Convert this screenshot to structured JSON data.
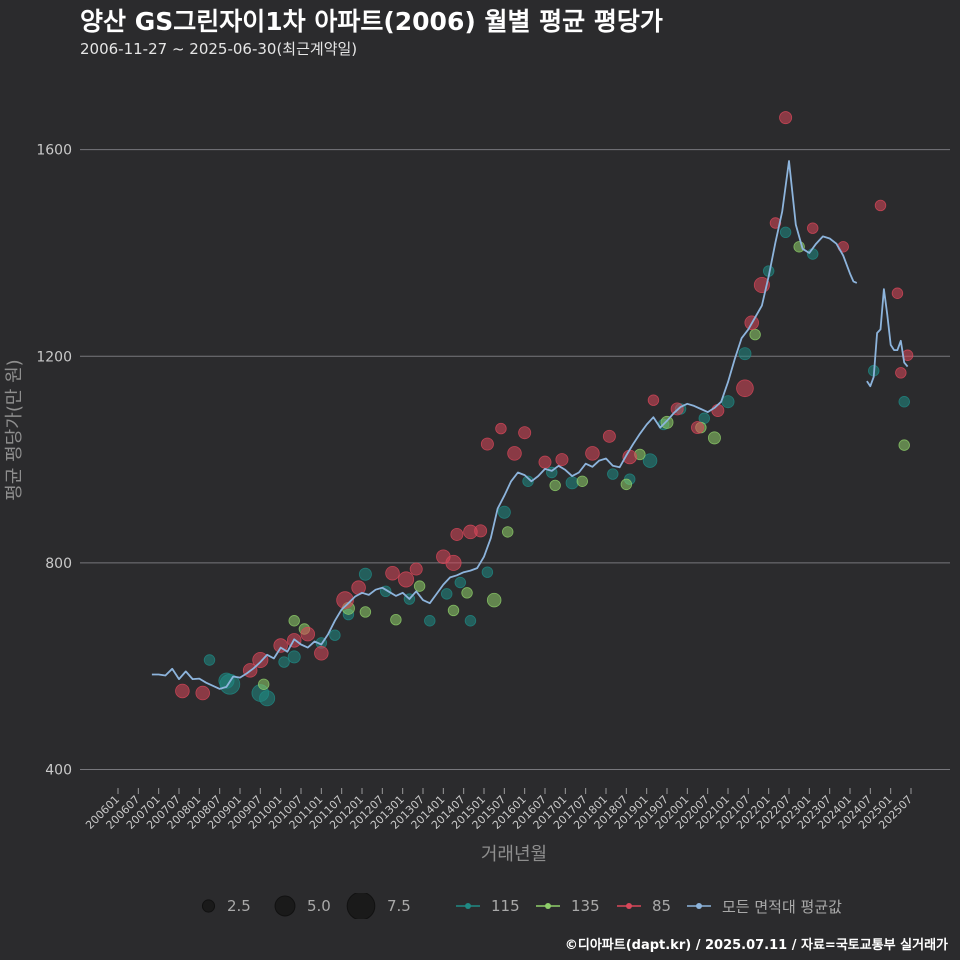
{
  "title": "양산 GS그린자이1차 아파트(2006) 월별 평균 평당가",
  "subtitle": "2006-11-27 ~ 2025-06-30(최근계약일)",
  "footer": "©디아파트(dapt.kr) / 2025.07.11 / 자료=국토교통부 실거래가",
  "colors": {
    "background": "#2b2b2d",
    "grid": "#77777c",
    "s115": "#1f8a84",
    "s135": "#8fcf6a",
    "s85": "#d9475a",
    "avg": "#8db4dc"
  },
  "legend": {
    "size_items": [
      {
        "label": "2.5",
        "size": 2.5
      },
      {
        "label": "5.0",
        "size": 5.0
      },
      {
        "label": "7.5",
        "size": 7.5
      }
    ],
    "color_items": [
      {
        "label": "115",
        "color_key": "s115"
      },
      {
        "label": "135",
        "color_key": "s135"
      },
      {
        "label": "85",
        "color_key": "s85"
      },
      {
        "label": "모든 면적대 평균값",
        "color_key": "avg"
      }
    ]
  },
  "chart_data": {
    "type": "scatter",
    "xlabel": "거래년월",
    "ylabel": "평균 평당가(만 원)",
    "ylim": [
      370,
      1700
    ],
    "yticks": [
      400,
      800,
      1200,
      1600
    ],
    "x_start": "2006-01",
    "x_end": "2025-07",
    "xticks": [
      "200601",
      "200607",
      "200701",
      "200707",
      "200801",
      "200807",
      "200901",
      "200907",
      "201001",
      "201007",
      "201101",
      "201107",
      "201201",
      "201207",
      "201301",
      "201307",
      "201401",
      "201407",
      "201501",
      "201507",
      "201601",
      "201607",
      "201701",
      "201707",
      "201801",
      "201807",
      "201901",
      "201907",
      "202001",
      "202007",
      "202101",
      "202107",
      "202201",
      "202207",
      "202301",
      "202307",
      "202401",
      "202407",
      "202501",
      "202507"
    ],
    "grid": "horizontal",
    "legend_position": "bottom",
    "avg_line": {
      "name": "모든 면적대 평균값",
      "points": [
        [
          "2006-11",
          584
        ],
        [
          "2007-01",
          584
        ],
        [
          "2007-03",
          582
        ],
        [
          "2007-05",
          595
        ],
        [
          "2007-07",
          575
        ],
        [
          "2007-09",
          590
        ],
        [
          "2007-11",
          575
        ],
        [
          "2008-01",
          576
        ],
        [
          "2008-03",
          568
        ],
        [
          "2008-05",
          562
        ],
        [
          "2008-07",
          556
        ],
        [
          "2008-09",
          560
        ],
        [
          "2008-11",
          580
        ],
        [
          "2009-01",
          578
        ],
        [
          "2009-03",
          586
        ],
        [
          "2009-05",
          596
        ],
        [
          "2009-07",
          608
        ],
        [
          "2009-09",
          622
        ],
        [
          "2009-11",
          615
        ],
        [
          "2010-01",
          636
        ],
        [
          "2010-03",
          628
        ],
        [
          "2010-05",
          652
        ],
        [
          "2010-07",
          642
        ],
        [
          "2010-09",
          636
        ],
        [
          "2010-11",
          648
        ],
        [
          "2011-01",
          642
        ],
        [
          "2011-03",
          662
        ],
        [
          "2011-05",
          688
        ],
        [
          "2011-07",
          710
        ],
        [
          "2011-09",
          722
        ],
        [
          "2011-11",
          735
        ],
        [
          "2012-01",
          742
        ],
        [
          "2012-03",
          738
        ],
        [
          "2012-05",
          748
        ],
        [
          "2012-07",
          752
        ],
        [
          "2012-09",
          744
        ],
        [
          "2012-11",
          736
        ],
        [
          "2013-01",
          742
        ],
        [
          "2013-03",
          730
        ],
        [
          "2013-05",
          745
        ],
        [
          "2013-07",
          728
        ],
        [
          "2013-09",
          722
        ],
        [
          "2013-11",
          740
        ],
        [
          "2014-01",
          758
        ],
        [
          "2014-03",
          772
        ],
        [
          "2014-05",
          776
        ],
        [
          "2014-07",
          782
        ],
        [
          "2014-09",
          785
        ],
        [
          "2014-11",
          790
        ],
        [
          "2015-01",
          812
        ],
        [
          "2015-03",
          848
        ],
        [
          "2015-05",
          905
        ],
        [
          "2015-07",
          930
        ],
        [
          "2015-09",
          958
        ],
        [
          "2015-11",
          975
        ],
        [
          "2016-01",
          970
        ],
        [
          "2016-03",
          958
        ],
        [
          "2016-05",
          968
        ],
        [
          "2016-07",
          982
        ],
        [
          "2016-09",
          978
        ],
        [
          "2016-11",
          988
        ],
        [
          "2017-01",
          980
        ],
        [
          "2017-03",
          968
        ],
        [
          "2017-05",
          975
        ],
        [
          "2017-07",
          992
        ],
        [
          "2017-09",
          986
        ],
        [
          "2017-11",
          998
        ],
        [
          "2018-01",
          1002
        ],
        [
          "2018-03",
          988
        ],
        [
          "2018-05",
          985
        ],
        [
          "2018-07",
          1008
        ],
        [
          "2018-09",
          1030
        ],
        [
          "2018-11",
          1050
        ],
        [
          "2019-01",
          1068
        ],
        [
          "2019-03",
          1082
        ],
        [
          "2019-05",
          1062
        ],
        [
          "2019-07",
          1075
        ],
        [
          "2019-09",
          1090
        ],
        [
          "2019-11",
          1102
        ],
        [
          "2020-01",
          1108
        ],
        [
          "2020-03",
          1104
        ],
        [
          "2020-05",
          1098
        ],
        [
          "2020-07",
          1092
        ],
        [
          "2020-09",
          1100
        ],
        [
          "2020-11",
          1112
        ],
        [
          "2021-01",
          1150
        ],
        [
          "2021-03",
          1195
        ],
        [
          "2021-05",
          1235
        ],
        [
          "2021-07",
          1252
        ],
        [
          "2021-09",
          1275
        ],
        [
          "2021-11",
          1298
        ],
        [
          "2022-01",
          1355
        ],
        [
          "2022-03",
          1420
        ],
        [
          "2022-05",
          1480
        ],
        [
          "2022-07",
          1578
        ],
        [
          "2022-09",
          1455
        ],
        [
          "2022-11",
          1408
        ],
        [
          "2023-01",
          1400
        ],
        [
          "2023-03",
          1418
        ],
        [
          "2023-05",
          1432
        ],
        [
          "2023-07",
          1428
        ],
        [
          "2023-09",
          1418
        ],
        [
          "2023-11",
          1395
        ],
        [
          "2024-01",
          1360
        ],
        [
          "2024-02",
          1345
        ],
        [
          "2024-03",
          1342
        ],
        null,
        [
          "2024-06",
          1152
        ],
        [
          "2024-07",
          1142
        ],
        [
          "2024-08",
          1160
        ],
        [
          "2024-09",
          1245
        ],
        [
          "2024-10",
          1252
        ],
        [
          "2024-11",
          1330
        ],
        [
          "2024-12",
          1280
        ],
        [
          "2025-01",
          1222
        ],
        [
          "2025-02",
          1212
        ],
        [
          "2025-03",
          1212
        ],
        [
          "2025-04",
          1230
        ],
        [
          "2025-05",
          1188
        ],
        [
          "2025-06",
          1180
        ]
      ]
    },
    "series": [
      {
        "name": "115",
        "color_key": "s115",
        "points": [
          [
            "2008-04",
            612,
            2.0
          ],
          [
            "2008-09",
            572,
            3.5
          ],
          [
            "2008-10",
            565,
            5.0
          ],
          [
            "2009-07",
            548,
            4.0
          ],
          [
            "2009-09",
            538,
            3.5
          ],
          [
            "2010-02",
            608,
            2.0
          ],
          [
            "2010-05",
            618,
            2.5
          ],
          [
            "2011-01",
            645,
            2.0
          ],
          [
            "2011-05",
            660,
            2.0
          ],
          [
            "2011-09",
            700,
            2.0
          ],
          [
            "2012-02",
            778,
            2.5
          ],
          [
            "2012-08",
            745,
            2.0
          ],
          [
            "2013-03",
            730,
            2.0
          ],
          [
            "2013-09",
            688,
            2.0
          ],
          [
            "2014-02",
            740,
            2.0
          ],
          [
            "2014-06",
            762,
            2.0
          ],
          [
            "2014-09",
            688,
            2.0
          ],
          [
            "2015-02",
            782,
            2.0
          ],
          [
            "2015-07",
            898,
            2.5
          ],
          [
            "2016-02",
            958,
            2.0
          ],
          [
            "2016-09",
            975,
            2.0
          ],
          [
            "2017-03",
            955,
            2.5
          ],
          [
            "2018-03",
            972,
            2.0
          ],
          [
            "2018-08",
            962,
            2.0
          ],
          [
            "2019-02",
            998,
            3.0
          ],
          [
            "2019-06",
            1068,
            2.0
          ],
          [
            "2019-11",
            1098,
            2.0
          ],
          [
            "2020-06",
            1080,
            2.0
          ],
          [
            "2021-01",
            1112,
            2.5
          ],
          [
            "2021-06",
            1205,
            2.5
          ],
          [
            "2022-01",
            1365,
            2.0
          ],
          [
            "2022-06",
            1440,
            2.0
          ],
          [
            "2023-02",
            1398,
            2.0
          ],
          [
            "2024-08",
            1172,
            2.0
          ],
          [
            "2025-05",
            1112,
            2.0
          ]
        ]
      },
      {
        "name": "135",
        "color_key": "s135",
        "points": [
          [
            "2009-08",
            565,
            2.0
          ],
          [
            "2010-05",
            688,
            2.0
          ],
          [
            "2010-08",
            672,
            2.0
          ],
          [
            "2011-09",
            712,
            2.5
          ],
          [
            "2012-02",
            705,
            2.0
          ],
          [
            "2012-11",
            690,
            2.0
          ],
          [
            "2013-06",
            755,
            2.0
          ],
          [
            "2014-04",
            708,
            2.0
          ],
          [
            "2014-08",
            742,
            2.0
          ],
          [
            "2015-04",
            728,
            3.0
          ],
          [
            "2015-08",
            860,
            2.0
          ],
          [
            "2016-10",
            950,
            2.0
          ],
          [
            "2017-06",
            958,
            2.0
          ],
          [
            "2018-07",
            952,
            2.0
          ],
          [
            "2018-11",
            1010,
            2.0
          ],
          [
            "2019-07",
            1072,
            2.5
          ],
          [
            "2020-05",
            1062,
            2.0
          ],
          [
            "2020-09",
            1042,
            2.5
          ],
          [
            "2021-09",
            1242,
            2.0
          ],
          [
            "2022-10",
            1412,
            2.0
          ],
          [
            "2025-05",
            1028,
            2.0
          ]
        ]
      },
      {
        "name": "85",
        "color_key": "s85",
        "points": [
          [
            "2007-08",
            552,
            3.0
          ],
          [
            "2008-02",
            548,
            3.0
          ],
          [
            "2009-04",
            592,
            3.0
          ],
          [
            "2009-07",
            612,
            3.5
          ],
          [
            "2010-01",
            640,
            3.0
          ],
          [
            "2010-05",
            650,
            3.0
          ],
          [
            "2010-09",
            662,
            3.0
          ],
          [
            "2011-01",
            625,
            3.0
          ],
          [
            "2011-08",
            728,
            4.0
          ],
          [
            "2011-12",
            752,
            3.0
          ],
          [
            "2012-10",
            780,
            3.0
          ],
          [
            "2013-02",
            768,
            3.5
          ],
          [
            "2013-05",
            788,
            2.5
          ],
          [
            "2014-01",
            812,
            3.0
          ],
          [
            "2014-04",
            800,
            3.5
          ],
          [
            "2014-05",
            855,
            2.5
          ],
          [
            "2014-09",
            860,
            3.0
          ],
          [
            "2014-12",
            862,
            2.5
          ],
          [
            "2015-02",
            1030,
            2.5
          ],
          [
            "2015-06",
            1060,
            2.0
          ],
          [
            "2015-10",
            1012,
            3.0
          ],
          [
            "2016-01",
            1052,
            2.5
          ],
          [
            "2016-07",
            995,
            2.5
          ],
          [
            "2016-12",
            1000,
            2.5
          ],
          [
            "2017-09",
            1012,
            3.0
          ],
          [
            "2018-02",
            1045,
            2.5
          ],
          [
            "2018-08",
            1005,
            3.0
          ],
          [
            "2019-03",
            1115,
            2.0
          ],
          [
            "2019-10",
            1098,
            2.5
          ],
          [
            "2020-04",
            1062,
            2.5
          ],
          [
            "2020-10",
            1095,
            2.5
          ],
          [
            "2021-06",
            1138,
            4.0
          ],
          [
            "2021-08",
            1265,
            3.0
          ],
          [
            "2021-11",
            1338,
            3.5
          ],
          [
            "2022-03",
            1458,
            2.0
          ],
          [
            "2022-06",
            1662,
            2.5
          ],
          [
            "2023-02",
            1448,
            2.0
          ],
          [
            "2023-11",
            1412,
            2.0
          ],
          [
            "2024-10",
            1492,
            2.0
          ],
          [
            "2025-03",
            1322,
            2.0
          ],
          [
            "2025-04",
            1168,
            2.0
          ],
          [
            "2025-06",
            1202,
            2.0
          ]
        ]
      }
    ]
  }
}
